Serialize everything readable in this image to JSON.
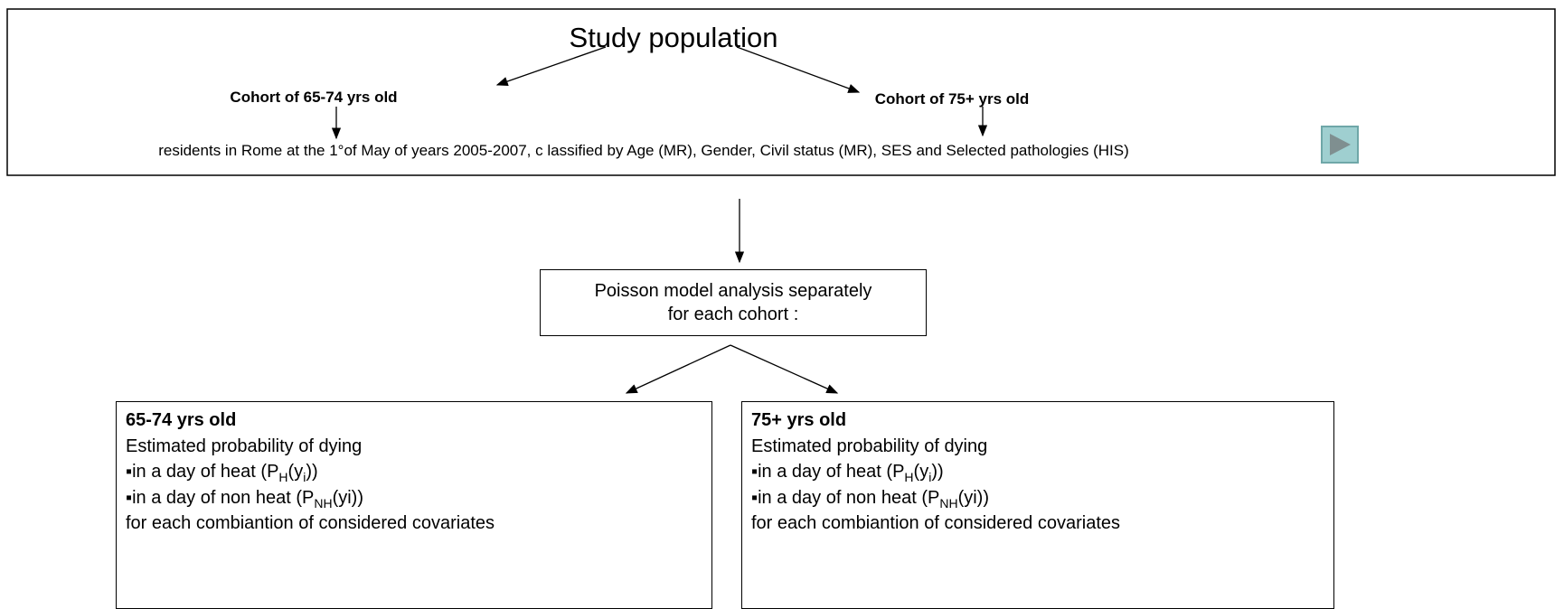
{
  "top": {
    "title": "Study population",
    "cohort_left": "Cohort of 65-74 yrs old",
    "cohort_right": "Cohort of 75+ yrs old",
    "residents": "residents in Rome  at the  1°of May of years 2005-2007, c lassified by Age (MR), Gender, Civil status (MR), SES and Selected pathologies (HIS)"
  },
  "middle": {
    "lines": [
      "Poisson model analysis separately",
      "for each cohort :"
    ]
  },
  "boxes": [
    {
      "heading": "65-74 yrs old",
      "lines": [
        [
          {
            "t": "Estimated probability of dying"
          }
        ],
        [
          {
            "t": "▪in a day of heat (P"
          },
          {
            "sub": "H"
          },
          {
            "t": "(y"
          },
          {
            "sub": "i"
          },
          {
            "t": "))"
          }
        ],
        [
          {
            "t": "▪in a day of non heat (P"
          },
          {
            "sub": "NH"
          },
          {
            "t": "(yi))"
          }
        ],
        [
          {
            "t": "for each combiantion of considered covariates"
          }
        ]
      ]
    },
    {
      "heading": "75+ yrs old",
      "lines": [
        [
          {
            "t": "Estimated probability of dying"
          }
        ],
        [
          {
            "t": "▪in a day of heat (P"
          },
          {
            "sub": "H"
          },
          {
            "t": "(y"
          },
          {
            "sub": "i"
          },
          {
            "t": "))"
          }
        ],
        [
          {
            "t": "▪in a day of non heat (P"
          },
          {
            "sub": "NH"
          },
          {
            "t": "(yi))"
          }
        ],
        [
          {
            "t": "for each combiantion of considered covariates"
          }
        ]
      ]
    }
  ]
}
